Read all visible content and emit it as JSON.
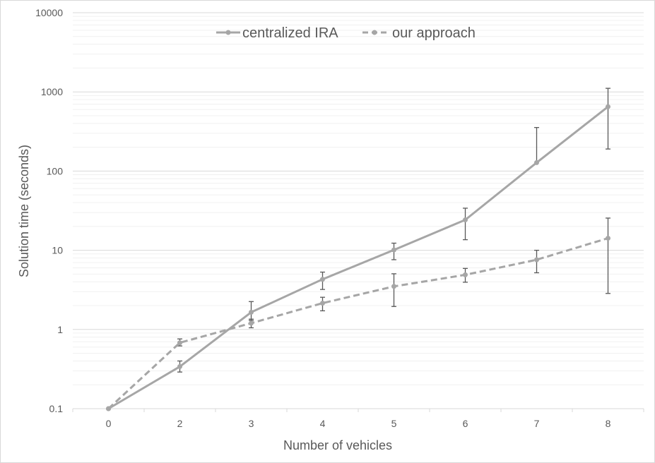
{
  "chart_data": {
    "type": "line",
    "title": "",
    "xlabel": "Number of vehicles",
    "ylabel": "Solution time (seconds)",
    "categories": [
      "0",
      "2",
      "3",
      "4",
      "5",
      "6",
      "7",
      "8"
    ],
    "yscale": "log",
    "ylim": [
      0.1,
      10000
    ],
    "yticks": [
      "0.1",
      "1",
      "10",
      "100",
      "1000",
      "10000"
    ],
    "grid": {
      "major": true,
      "minor": true,
      "vertical": false
    },
    "legend_position": "top-center",
    "colors": {
      "series": "#a6a6a6",
      "error_bars": "#595959",
      "grid_major": "#d9d9d9",
      "grid_minor": "#f0f0f0",
      "axis_text": "#595959"
    },
    "series": [
      {
        "name": "centralized IRA",
        "style": "solid",
        "values": [
          0.1,
          0.34,
          1.65,
          4.3,
          10.1,
          24.2,
          128,
          650
        ],
        "error_low": [
          null,
          0.29,
          1.3,
          3.2,
          7.6,
          13.6,
          null,
          190
        ],
        "error_high": [
          null,
          0.4,
          2.25,
          5.3,
          12.3,
          34,
          355,
          1110
        ]
      },
      {
        "name": "our approach",
        "style": "dashed",
        "values": [
          0.1,
          0.68,
          1.2,
          2.15,
          3.5,
          4.9,
          7.6,
          14.2
        ],
        "error_low": [
          null,
          0.62,
          1.05,
          1.72,
          1.95,
          3.95,
          5.2,
          2.85
        ],
        "error_high": [
          null,
          0.76,
          1.35,
          2.55,
          5.05,
          5.9,
          10,
          25.5
        ]
      }
    ]
  }
}
